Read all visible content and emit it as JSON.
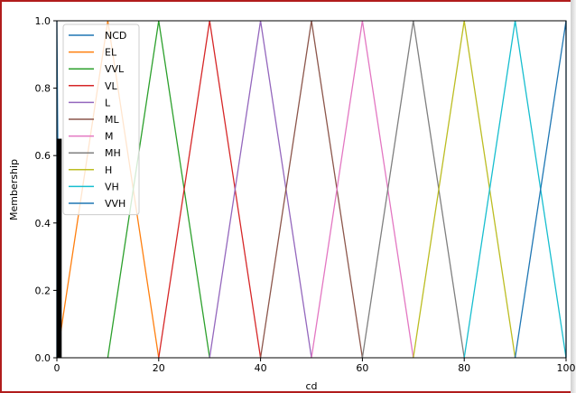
{
  "chart_data": {
    "type": "line",
    "title": "",
    "xlabel": "cd",
    "ylabel": "Membership",
    "xlim": [
      0,
      100
    ],
    "ylim": [
      0,
      1.0
    ],
    "xticks": [
      0,
      20,
      40,
      60,
      80,
      100
    ],
    "yticks": [
      0.0,
      0.2,
      0.4,
      0.6,
      0.8,
      1.0
    ],
    "xtick_labels": [
      "0",
      "20",
      "40",
      "60",
      "80",
      "100"
    ],
    "ytick_labels": [
      "0.0",
      "0.2",
      "0.4",
      "0.6",
      "0.8",
      "1.0"
    ],
    "grid": false,
    "legend_position": "top-left",
    "series": [
      {
        "name": "NCD",
        "color": "#1f77b4",
        "x": [
          0,
          0,
          0.5
        ],
        "y": [
          0,
          1,
          0
        ]
      },
      {
        "name": "EL",
        "color": "#ff7f0e",
        "x": [
          0,
          10,
          20
        ],
        "y": [
          0,
          1,
          0
        ]
      },
      {
        "name": "VVL",
        "color": "#2ca02c",
        "x": [
          10,
          20,
          30
        ],
        "y": [
          0,
          1,
          0
        ]
      },
      {
        "name": "VL",
        "color": "#d62728",
        "x": [
          20,
          30,
          40
        ],
        "y": [
          0,
          1,
          0
        ]
      },
      {
        "name": "L",
        "color": "#9467bd",
        "x": [
          30,
          40,
          50
        ],
        "y": [
          0,
          1,
          0
        ]
      },
      {
        "name": "ML",
        "color": "#8c564b",
        "x": [
          40,
          50,
          60
        ],
        "y": [
          0,
          1,
          0
        ]
      },
      {
        "name": "M",
        "color": "#e377c2",
        "x": [
          50,
          60,
          70
        ],
        "y": [
          0,
          1,
          0
        ]
      },
      {
        "name": "MH",
        "color": "#7f7f7f",
        "x": [
          60,
          70,
          80
        ],
        "y": [
          0,
          1,
          0
        ]
      },
      {
        "name": "H",
        "color": "#bcbd22",
        "x": [
          70,
          80,
          90
        ],
        "y": [
          0,
          1,
          0
        ]
      },
      {
        "name": "VH",
        "color": "#17becf",
        "x": [
          80,
          90,
          100
        ],
        "y": [
          0,
          1,
          0
        ]
      },
      {
        "name": "VVH",
        "color": "#1f77b4",
        "x": [
          90,
          100,
          100
        ],
        "y": [
          0,
          1,
          0
        ]
      }
    ],
    "activation_bar": {
      "x": 0.5,
      "value": 0.65,
      "color": "#000000"
    }
  }
}
